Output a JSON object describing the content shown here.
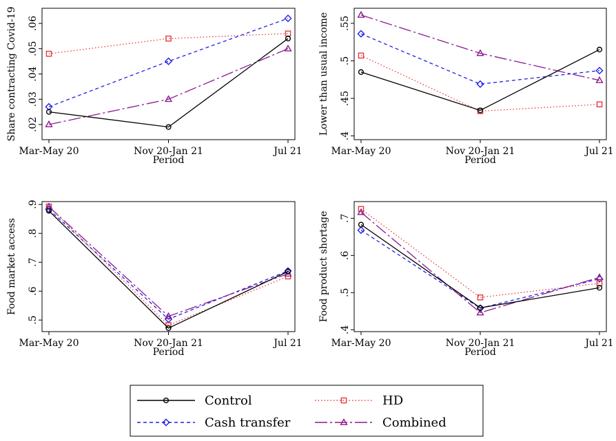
{
  "chart_data": [
    {
      "type": "line",
      "ylabel": "Share contracting Covid-19",
      "xlabel": "Period",
      "categories": [
        "Mar-May 20",
        "Nov 20-Jan 21",
        "Jul 21"
      ],
      "ylim": [
        0.014,
        0.066
      ],
      "yticks": [
        0.02,
        0.03,
        0.04,
        0.05,
        0.06
      ],
      "ytick_labels": [
        ".02",
        ".03",
        ".04",
        ".05",
        ".06"
      ],
      "series": [
        {
          "name": "Control",
          "values": [
            0.025,
            0.019,
            0.054
          ]
        },
        {
          "name": "Cash transfer",
          "values": [
            0.027,
            0.045,
            0.062
          ]
        },
        {
          "name": "HD",
          "values": [
            0.048,
            0.054,
            0.056
          ]
        },
        {
          "name": "Combined",
          "values": [
            0.02,
            0.03,
            0.05
          ]
        }
      ]
    },
    {
      "type": "line",
      "ylabel": "Lower than usual income",
      "xlabel": "Period",
      "categories": [
        "Mar-May 20",
        "Nov 20-Jan 21",
        "Jul 21"
      ],
      "ylim": [
        0.395,
        0.57
      ],
      "yticks": [
        0.4,
        0.45,
        0.5,
        0.55
      ],
      "ytick_labels": [
        ".4",
        ".45",
        ".5",
        ".55"
      ],
      "series": [
        {
          "name": "Control",
          "values": [
            0.485,
            0.434,
            0.515
          ]
        },
        {
          "name": "Cash transfer",
          "values": [
            0.536,
            0.469,
            0.487
          ]
        },
        {
          "name": "HD",
          "values": [
            0.507,
            0.433,
            0.442
          ]
        },
        {
          "name": "Combined",
          "values": [
            0.561,
            0.51,
            0.474
          ]
        }
      ]
    },
    {
      "type": "line",
      "ylabel": "Food market access",
      "xlabel": "Period",
      "categories": [
        "Mar-May 20",
        "Nov 20-Jan 21",
        "Jul 21"
      ],
      "ylim": [
        0.46,
        0.91
      ],
      "yticks": [
        0.5,
        0.6,
        0.7,
        0.8,
        0.9
      ],
      "ytick_labels": [
        ".5",
        ".6",
        ".7",
        ".8",
        ".9"
      ],
      "series": [
        {
          "name": "Control",
          "values": [
            0.878,
            0.472,
            0.668
          ]
        },
        {
          "name": "Cash transfer",
          "values": [
            0.883,
            0.503,
            0.67
          ]
        },
        {
          "name": "HD",
          "values": [
            0.893,
            0.482,
            0.651
          ]
        },
        {
          "name": "Combined",
          "values": [
            0.892,
            0.513,
            0.66
          ]
        }
      ]
    },
    {
      "type": "line",
      "ylabel": "Food product shortage",
      "xlabel": "Period",
      "categories": [
        "Mar-May 20",
        "Nov 20-Jan 21",
        "Jul 21"
      ],
      "ylim": [
        0.395,
        0.745
      ],
      "yticks": [
        0.4,
        0.5,
        0.6,
        0.7
      ],
      "ytick_labels": [
        ".4",
        ".5",
        ".6",
        ".7"
      ],
      "series": [
        {
          "name": "Control",
          "values": [
            0.683,
            0.459,
            0.513
          ]
        },
        {
          "name": "Cash transfer",
          "values": [
            0.668,
            0.458,
            0.537
          ]
        },
        {
          "name": "HD",
          "values": [
            0.725,
            0.487,
            0.525
          ]
        },
        {
          "name": "Combined",
          "values": [
            0.716,
            0.446,
            0.541
          ]
        }
      ]
    }
  ],
  "legend": {
    "placement": "bottom-center",
    "items": [
      "Control",
      "HD",
      "Cash transfer",
      "Combined"
    ]
  },
  "styles": {
    "Control": {
      "color": "#000000",
      "dash": "",
      "marker": "circle"
    },
    "Cash transfer": {
      "color": "#1f1fe6",
      "dash": "5,4",
      "marker": "diamond"
    },
    "HD": {
      "color": "#e8383d",
      "dash": "1.5,3",
      "marker": "square"
    },
    "Combined": {
      "color": "#8b1a8b",
      "dash": "18,4,3,4",
      "marker": "triangle"
    }
  }
}
